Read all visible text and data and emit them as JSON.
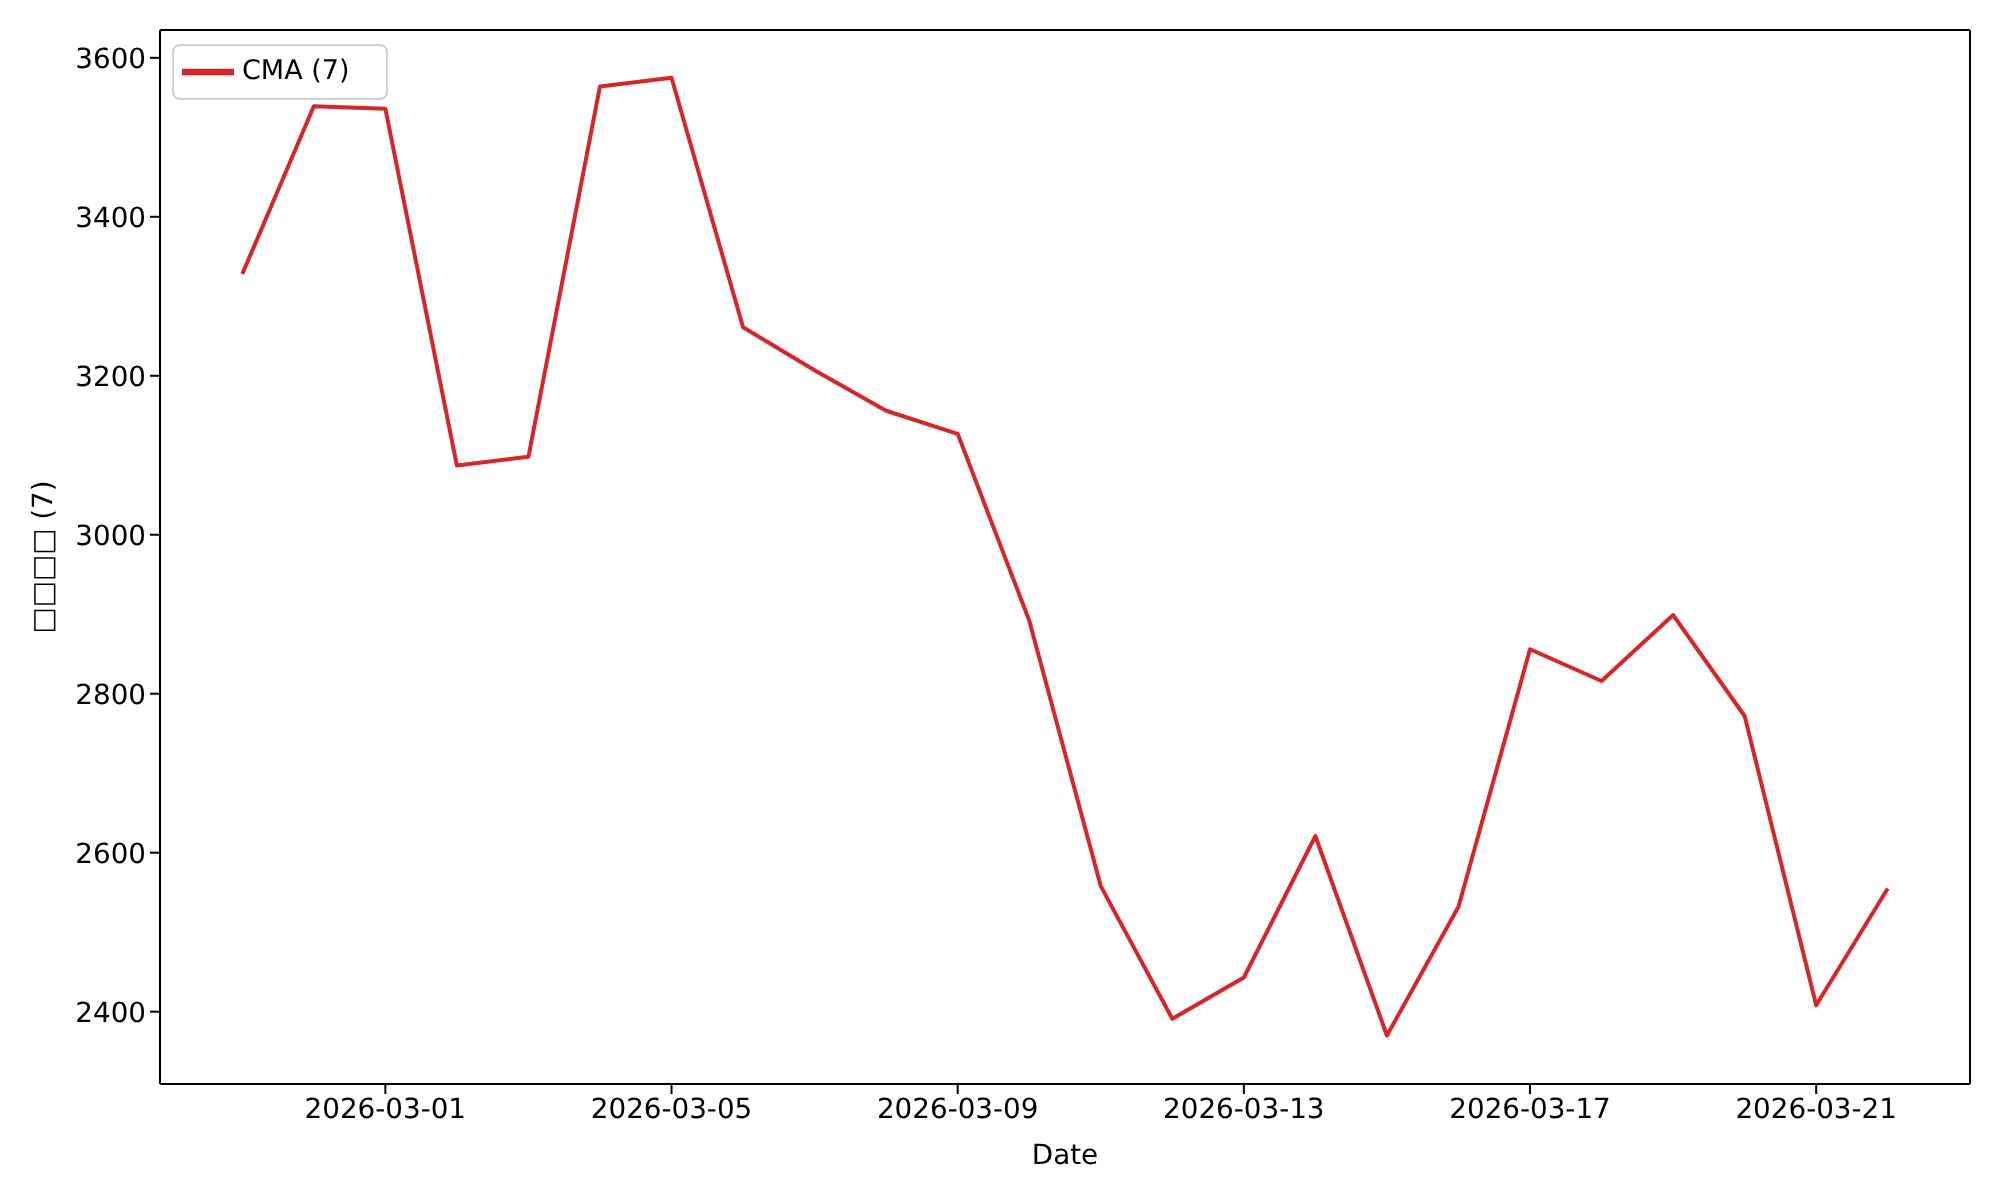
{
  "chart_data": {
    "type": "line",
    "xlabel": "Date",
    "ylabel": "□□□□ (7)",
    "x": [
      "2026-02-27",
      "2026-02-28",
      "2026-03-01",
      "2026-03-02",
      "2026-03-03",
      "2026-03-04",
      "2026-03-05",
      "2026-03-06",
      "2026-03-07",
      "2026-03-08",
      "2026-03-09",
      "2026-03-10",
      "2026-03-11",
      "2026-03-12",
      "2026-03-13",
      "2026-03-14",
      "2026-03-15",
      "2026-03-16",
      "2026-03-17",
      "2026-03-18",
      "2026-03-19",
      "2026-03-20",
      "2026-03-21",
      "2026-03-22"
    ],
    "series": [
      {
        "name": "CMA (7)",
        "color": "#d62728",
        "values": [
          3328,
          3539,
          3536,
          3087,
          3098,
          3564,
          3575,
          3261,
          3207,
          3156,
          3127,
          2892,
          2558,
          2391,
          2443,
          2621,
          2370,
          2532,
          2856,
          2816,
          2899,
          2772,
          2408,
          2555
        ]
      }
    ],
    "xlim": [
      "2026-02-25T20:24",
      "2026-03-23T03:36"
    ],
    "xticks": [
      "2026-03-01",
      "2026-03-05",
      "2026-03-09",
      "2026-03-13",
      "2026-03-17",
      "2026-03-21"
    ],
    "ylim": [
      2309,
      3635
    ],
    "yticks": [
      2400,
      2600,
      2800,
      3000,
      3200,
      3400,
      3600
    ],
    "legend": "top left"
  }
}
